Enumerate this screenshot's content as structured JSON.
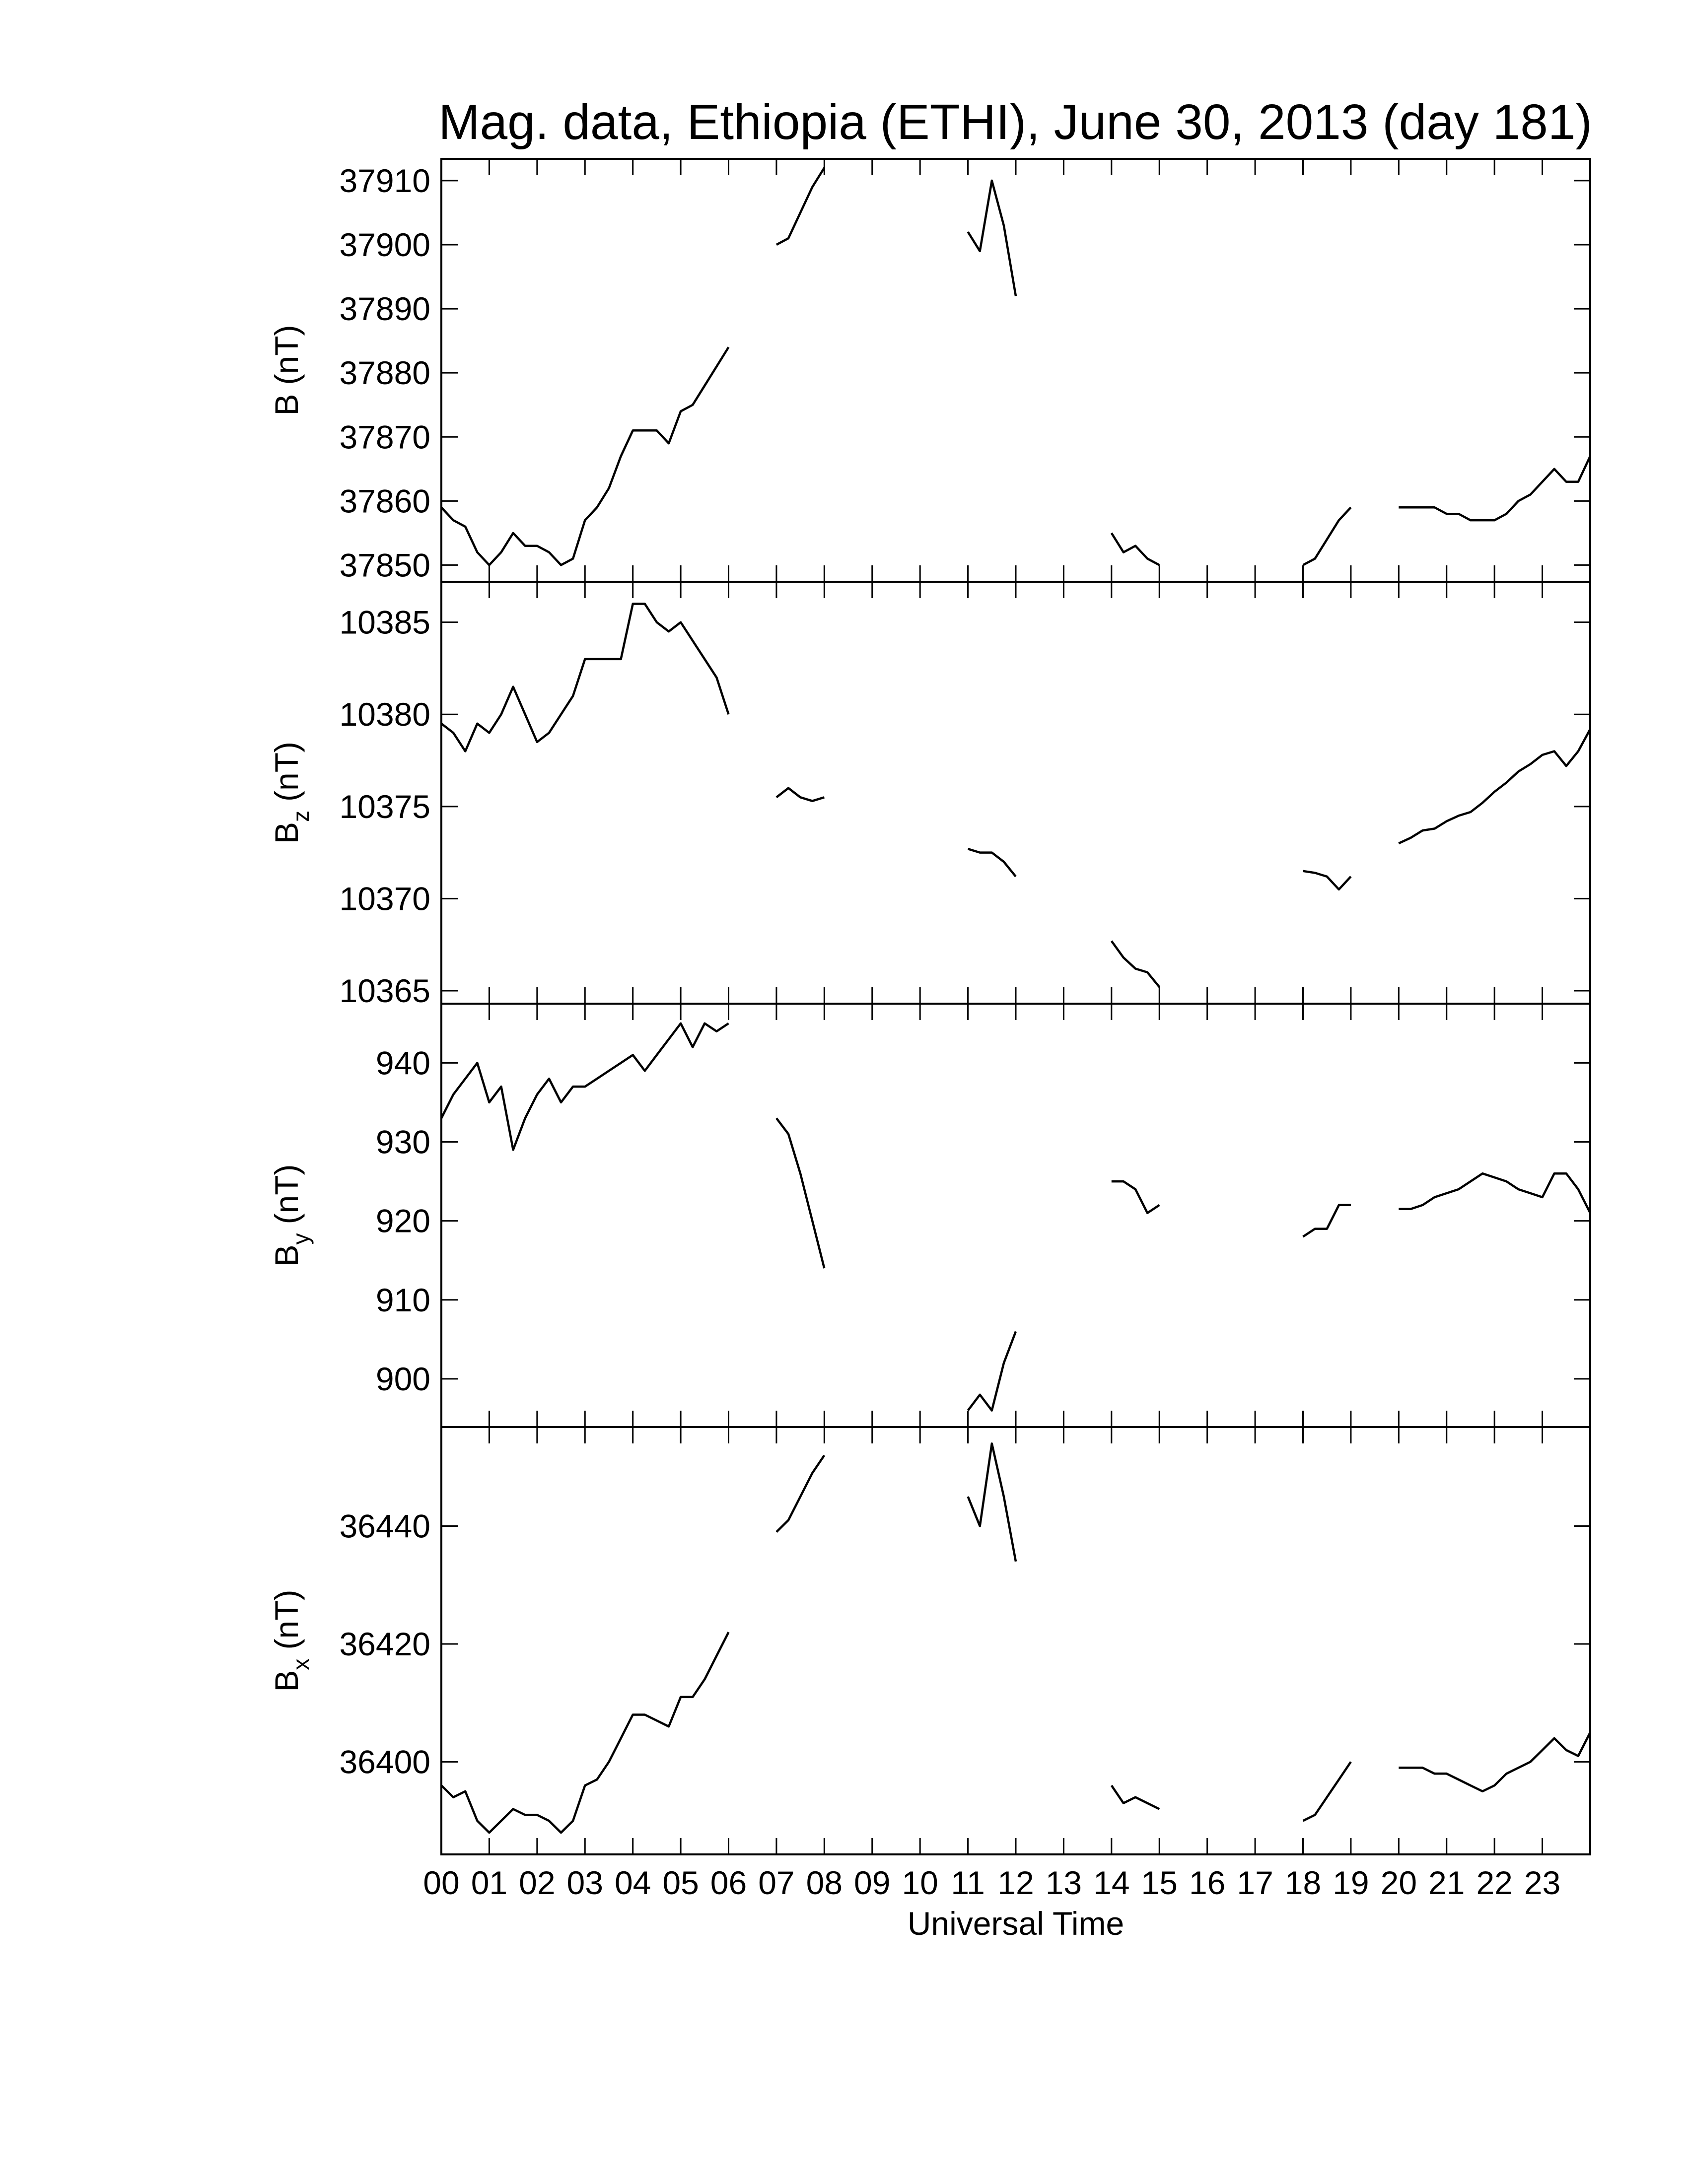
{
  "chart_data": [
    {
      "type": "line",
      "title": "Mag. data, Ethiopia (ETHI), June 30, 2013 (day 181)",
      "ylabel": "B",
      "ylabel_unit": "(nT)",
      "x": [
        0,
        0.25,
        0.5,
        0.75,
        1,
        1.25,
        1.5,
        1.75,
        2,
        2.25,
        2.5,
        2.75,
        3,
        3.25,
        3.5,
        3.75,
        4,
        4.25,
        4.5,
        4.75,
        5,
        5.25,
        5.5,
        5.75,
        6,
        6.25,
        6.5,
        6.75,
        7,
        7.25,
        7.5,
        7.75,
        8,
        8.25,
        8.5,
        8.75,
        9,
        9.25,
        9.5,
        9.75,
        10,
        10.25,
        10.5,
        10.75,
        11,
        11.25,
        11.5,
        11.75,
        12,
        12.25,
        12.5,
        12.75,
        13,
        13.25,
        13.5,
        13.75,
        14,
        14.25,
        14.5,
        14.75,
        15,
        15.25,
        15.5,
        15.75,
        16,
        16.25,
        16.5,
        16.75,
        17,
        17.25,
        17.5,
        17.75,
        18,
        18.25,
        18.5,
        18.75,
        19,
        19.25,
        19.5,
        19.75,
        20,
        20.25,
        20.5,
        20.75,
        21,
        21.25,
        21.5,
        21.75,
        22,
        22.25,
        22.5,
        22.75,
        23,
        23.25,
        23.5,
        23.75,
        24
      ],
      "values": [
        37859,
        37857,
        37856,
        37852,
        37850,
        37852,
        37855,
        37853,
        37853,
        37852,
        37850,
        37851,
        37857,
        37859,
        37862,
        37867,
        37871,
        37871,
        37871,
        37869,
        37874,
        37875,
        37878,
        37881,
        37884,
        null,
        null,
        null,
        37900,
        37901,
        37905,
        37909,
        37912,
        null,
        null,
        null,
        null,
        null,
        null,
        null,
        null,
        null,
        null,
        null,
        37902,
        37899,
        37910,
        37903,
        37892,
        null,
        null,
        null,
        null,
        null,
        null,
        null,
        37855,
        37852,
        37853,
        37851,
        37850,
        null,
        null,
        null,
        null,
        null,
        null,
        null,
        null,
        null,
        null,
        null,
        37850,
        37851,
        37854,
        37857,
        37859,
        null,
        null,
        null,
        37859,
        37859,
        37859,
        37859,
        37858,
        37858,
        37857,
        37857,
        37857,
        37858,
        37860,
        37861,
        37863,
        37865,
        37863,
        37863,
        37867
      ],
      "color": "#000000",
      "xlim": [
        0,
        24
      ],
      "ylim": [
        37847.4,
        37913.4
      ],
      "yticks": [
        37850,
        37860,
        37870,
        37880,
        37890,
        37900,
        37910
      ]
    },
    {
      "type": "line",
      "ylabel": "B",
      "ylabel_sub": "z",
      "ylabel_unit": "(nT)",
      "x": [
        0,
        0.25,
        0.5,
        0.75,
        1,
        1.25,
        1.5,
        1.75,
        2,
        2.25,
        2.5,
        2.75,
        3,
        3.25,
        3.5,
        3.75,
        4,
        4.25,
        4.5,
        4.75,
        5,
        5.25,
        5.5,
        5.75,
        6,
        6.25,
        6.5,
        6.75,
        7,
        7.25,
        7.5,
        7.75,
        8,
        8.25,
        8.5,
        8.75,
        9,
        9.25,
        9.5,
        9.75,
        10,
        10.25,
        10.5,
        10.75,
        11,
        11.25,
        11.5,
        11.75,
        12,
        12.25,
        12.5,
        12.75,
        13,
        13.25,
        13.5,
        13.75,
        14,
        14.25,
        14.5,
        14.75,
        15,
        15.25,
        15.5,
        15.75,
        16,
        16.25,
        16.5,
        16.75,
        17,
        17.25,
        17.5,
        17.75,
        18,
        18.25,
        18.5,
        18.75,
        19,
        19.25,
        19.5,
        19.75,
        20,
        20.25,
        20.5,
        20.75,
        21,
        21.25,
        21.5,
        21.75,
        22,
        22.25,
        22.5,
        22.75,
        23,
        23.25,
        23.5,
        23.75,
        24
      ],
      "values": [
        10379.5,
        10379,
        10378,
        10379.5,
        10379,
        10380,
        10381.5,
        10380,
        10378.5,
        10379,
        10380,
        10381,
        10383,
        10383,
        10383,
        10383,
        10386,
        10386,
        10385,
        10384.5,
        10385,
        10384,
        10383,
        10382,
        10380,
        null,
        null,
        null,
        10375.5,
        10376,
        10375.5,
        10375.3,
        10375.5,
        null,
        null,
        null,
        null,
        null,
        null,
        null,
        null,
        null,
        null,
        null,
        10372.7,
        10372.5,
        10372.5,
        10372,
        10371.2,
        null,
        null,
        null,
        null,
        null,
        null,
        null,
        10367.7,
        10366.8,
        10366.2,
        10366,
        10365.2,
        null,
        null,
        null,
        null,
        null,
        null,
        null,
        null,
        null,
        null,
        null,
        10371.5,
        10371.4,
        10371.2,
        10370.5,
        10371.2,
        null,
        null,
        null,
        10373,
        10373.3,
        10373.7,
        10373.8,
        10374.2,
        10374.5,
        10374.7,
        10375.2,
        10375.8,
        10376.3,
        10376.9,
        10377.3,
        10377.8,
        10378,
        10377.2,
        10378,
        10379.2
      ],
      "color": "#000000",
      "xlim": [
        0,
        24
      ],
      "ylim": [
        10364.3,
        10387.2
      ],
      "yticks": [
        10365,
        10370,
        10375,
        10380,
        10385
      ]
    },
    {
      "type": "line",
      "ylabel": "B",
      "ylabel_sub": "y",
      "ylabel_unit": "(nT)",
      "x": [
        0,
        0.25,
        0.5,
        0.75,
        1,
        1.25,
        1.5,
        1.75,
        2,
        2.25,
        2.5,
        2.75,
        3,
        3.25,
        3.5,
        3.75,
        4,
        4.25,
        4.5,
        4.75,
        5,
        5.25,
        5.5,
        5.75,
        6,
        6.25,
        6.5,
        6.75,
        7,
        7.25,
        7.5,
        7.75,
        8,
        8.25,
        8.5,
        8.75,
        9,
        9.25,
        9.5,
        9.75,
        10,
        10.25,
        10.5,
        10.75,
        11,
        11.25,
        11.5,
        11.75,
        12,
        12.25,
        12.5,
        12.75,
        13,
        13.25,
        13.5,
        13.75,
        14,
        14.25,
        14.5,
        14.75,
        15,
        15.25,
        15.5,
        15.75,
        16,
        16.25,
        16.5,
        16.75,
        17,
        17.25,
        17.5,
        17.75,
        18,
        18.25,
        18.5,
        18.75,
        19,
        19.25,
        19.5,
        19.75,
        20,
        20.25,
        20.5,
        20.75,
        21,
        21.25,
        21.5,
        21.75,
        22,
        22.25,
        22.5,
        22.75,
        23,
        23.25,
        23.5,
        23.75,
        24
      ],
      "values": [
        933,
        936,
        938,
        940,
        935,
        937,
        929,
        933,
        936,
        938,
        935,
        937,
        937,
        938,
        939,
        940,
        941,
        939,
        941,
        943,
        945,
        942,
        945,
        944,
        945,
        null,
        null,
        null,
        933,
        931,
        926,
        920,
        914,
        null,
        null,
        null,
        null,
        null,
        null,
        null,
        null,
        null,
        null,
        null,
        896,
        898,
        896,
        902,
        906,
        null,
        null,
        null,
        null,
        null,
        null,
        null,
        925,
        925,
        924,
        921,
        922,
        null,
        null,
        null,
        null,
        null,
        null,
        null,
        null,
        null,
        null,
        null,
        918,
        919,
        919,
        922,
        922,
        null,
        null,
        null,
        921.5,
        921.5,
        922,
        923,
        923.5,
        924,
        925,
        926,
        925.5,
        925,
        924,
        923.5,
        923,
        926,
        926,
        924,
        921
      ],
      "color": "#000000",
      "xlim": [
        0,
        24
      ],
      "ylim": [
        893.9,
        947.5
      ],
      "yticks": [
        900,
        910,
        920,
        930,
        940
      ]
    },
    {
      "type": "line",
      "ylabel": "B",
      "ylabel_sub": "x",
      "ylabel_unit": "(nT)",
      "xlabel": "Universal Time",
      "x": [
        0,
        0.25,
        0.5,
        0.75,
        1,
        1.25,
        1.5,
        1.75,
        2,
        2.25,
        2.5,
        2.75,
        3,
        3.25,
        3.5,
        3.75,
        4,
        4.25,
        4.5,
        4.75,
        5,
        5.25,
        5.5,
        5.75,
        6,
        6.25,
        6.5,
        6.75,
        7,
        7.25,
        7.5,
        7.75,
        8,
        8.25,
        8.5,
        8.75,
        9,
        9.25,
        9.5,
        9.75,
        10,
        10.25,
        10.5,
        10.75,
        11,
        11.25,
        11.5,
        11.75,
        12,
        12.25,
        12.5,
        12.75,
        13,
        13.25,
        13.5,
        13.75,
        14,
        14.25,
        14.5,
        14.75,
        15,
        15.25,
        15.5,
        15.75,
        16,
        16.25,
        16.5,
        16.75,
        17,
        17.25,
        17.5,
        17.75,
        18,
        18.25,
        18.5,
        18.75,
        19,
        19.25,
        19.5,
        19.75,
        20,
        20.25,
        20.5,
        20.75,
        21,
        21.25,
        21.5,
        21.75,
        22,
        22.25,
        22.5,
        22.75,
        23,
        23.25,
        23.5,
        23.75,
        24
      ],
      "values": [
        36396,
        36394,
        36395,
        36390,
        36388,
        36390,
        36392,
        36391,
        36391,
        36390,
        36388,
        36390,
        36396,
        36397,
        36400,
        36404,
        36408,
        36408,
        36407,
        36406,
        36411,
        36411,
        36414,
        36418,
        36422,
        null,
        null,
        null,
        36439,
        36441,
        36445,
        36449,
        36452,
        null,
        null,
        null,
        null,
        null,
        null,
        null,
        null,
        null,
        null,
        null,
        36445,
        36440,
        36454,
        36445,
        36434,
        null,
        null,
        null,
        null,
        null,
        null,
        null,
        36396,
        36393,
        36394,
        36393,
        36392,
        null,
        null,
        null,
        null,
        null,
        null,
        null,
        null,
        null,
        null,
        null,
        36390,
        36391,
        36394,
        36397,
        36400,
        null,
        null,
        null,
        36399,
        36399,
        36399,
        36398,
        36398,
        36397,
        36396,
        36395,
        36396,
        36398,
        36399,
        36400,
        36402,
        36404,
        36402,
        36401,
        36405
      ],
      "color": "#000000",
      "xlim": [
        0,
        24
      ],
      "ylim": [
        36384.3,
        36456.8
      ],
      "yticks": [
        36400,
        36420,
        36440
      ],
      "xticks": [
        {
          "value": 0,
          "label": "00"
        },
        {
          "value": 1,
          "label": "01"
        },
        {
          "value": 2,
          "label": "02"
        },
        {
          "value": 3,
          "label": "03"
        },
        {
          "value": 4,
          "label": "04"
        },
        {
          "value": 5,
          "label": "05"
        },
        {
          "value": 6,
          "label": "06"
        },
        {
          "value": 7,
          "label": "07"
        },
        {
          "value": 8,
          "label": "08"
        },
        {
          "value": 9,
          "label": "09"
        },
        {
          "value": 10,
          "label": "10"
        },
        {
          "value": 11,
          "label": "11"
        },
        {
          "value": 12,
          "label": "12"
        },
        {
          "value": 13,
          "label": "13"
        },
        {
          "value": 14,
          "label": "14"
        },
        {
          "value": 15,
          "label": "15"
        },
        {
          "value": 16,
          "label": "16"
        },
        {
          "value": 17,
          "label": "17"
        },
        {
          "value": 18,
          "label": "18"
        },
        {
          "value": 19,
          "label": "19"
        },
        {
          "value": 20,
          "label": "20"
        },
        {
          "value": 21,
          "label": "21"
        },
        {
          "value": 22,
          "label": "22"
        },
        {
          "value": 23,
          "label": "23"
        }
      ]
    }
  ]
}
